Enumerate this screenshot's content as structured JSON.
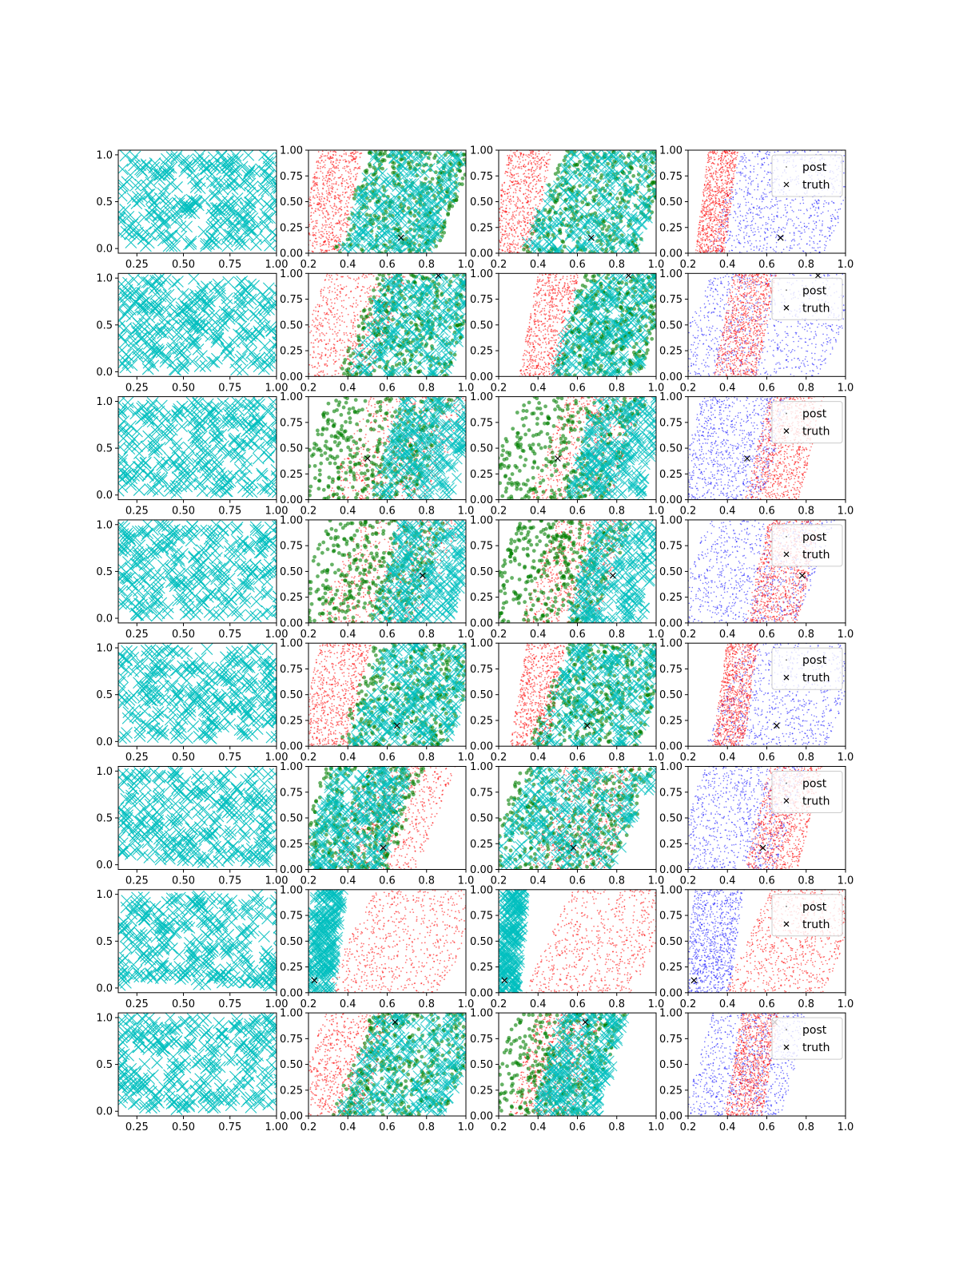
{
  "colors": {
    "uniform_points": "#00bfbf",
    "posterior_red": "#ff0000",
    "posterior_green": "#007f00",
    "posterior_blue": "#0000ff",
    "truth_marker": "#000000",
    "axes": "#000000"
  },
  "chart_data": {
    "type": "scatter",
    "layout": "8 rows x 4 columns grid of scatter panels",
    "grid": false,
    "legend": {
      "placement": "top-right",
      "panels": "fourth column of every row",
      "entries": [
        {
          "label": "post",
          "marker": "point"
        },
        {
          "label": "truth",
          "marker": "x"
        }
      ]
    },
    "columns": [
      {
        "content": "cyan x markers spread uniformly",
        "xlim": [
          0.15,
          1.0
        ],
        "ylim": [
          -0.05,
          1.05
        ],
        "xticks": [
          "0.25",
          "0.50",
          "0.75",
          "1.00"
        ],
        "yticks": [
          "0.0",
          "0.5",
          "1.0"
        ]
      },
      {
        "content": "red points, green dots and cyan x markers",
        "xlim": [
          0.2,
          1.0
        ],
        "ylim": [
          0.0,
          1.0
        ],
        "xticks": [
          "0.2",
          "0.4",
          "0.6",
          "0.8",
          "1.0"
        ],
        "yticks": [
          "0.00",
          "0.25",
          "0.50",
          "0.75",
          "1.00"
        ]
      },
      {
        "content": "red points, green dots and cyan x markers",
        "xlim": [
          0.2,
          1.0
        ],
        "ylim": [
          0.0,
          1.0
        ],
        "xticks": [
          "0.2",
          "0.4",
          "0.6",
          "0.8",
          "1.0"
        ],
        "yticks": [
          "0.00",
          "0.25",
          "0.50",
          "0.75",
          "1.00"
        ]
      },
      {
        "content": "red and blue posterior points with truth marker",
        "xlim": [
          0.2,
          1.0
        ],
        "ylim": [
          0.0,
          1.0
        ],
        "xticks": [
          "0.2",
          "0.4",
          "0.6",
          "0.8",
          "1.0"
        ],
        "yticks": [
          "0.00",
          "0.25",
          "0.50",
          "0.75",
          "1.00"
        ]
      }
    ],
    "rows": [
      {
        "truth": [
          0.67,
          0.15
        ],
        "bands": {
          "col2": {
            "red": [
              0.2,
              0.43
            ],
            "green": [
              0.42,
              0.95
            ],
            "cyan": [
              0.45,
              0.92
            ]
          },
          "col3": {
            "red": [
              0.2,
              0.42
            ],
            "green": [
              0.42,
              1.0
            ],
            "cyan": [
              0.43,
              1.0
            ]
          },
          "col4": {
            "red": [
              0.27,
              0.42
            ],
            "blue": [
              0.38,
              1.0
            ]
          }
        }
      },
      {
        "truth": [
          0.86,
          0.98
        ],
        "bands": {
          "col2": {
            "red": [
              0.2,
              0.62
            ],
            "green": [
              0.45,
              1.0
            ],
            "cyan": [
              0.5,
              1.0
            ]
          },
          "col3": {
            "red": [
              0.35,
              0.56
            ],
            "green": [
              0.55,
              1.0
            ],
            "cyan": [
              0.55,
              1.0
            ]
          },
          "col4": {
            "red": [
              0.38,
              0.6
            ],
            "blue": [
              0.2,
              1.0
            ]
          }
        }
      },
      {
        "truth": [
          0.5,
          0.4
        ],
        "bands": {
          "col2": {
            "red": [
              0.4,
              0.92
            ],
            "green": [
              0.2,
              0.85
            ],
            "cyan": [
              0.6,
              1.0
            ]
          },
          "col3": {
            "red": [
              0.45,
              0.86
            ],
            "green": [
              0.2,
              0.85
            ],
            "cyan": [
              0.62,
              1.0
            ]
          },
          "col4": {
            "red": [
              0.55,
              0.83
            ],
            "blue": [
              0.2,
              0.65
            ]
          }
        }
      },
      {
        "truth": [
          0.78,
          0.46
        ],
        "bands": {
          "col2": {
            "red": [
              0.35,
              0.88
            ],
            "green": [
              0.2,
              0.82
            ],
            "cyan": [
              0.6,
              1.0
            ]
          },
          "col3": {
            "red": [
              0.4,
              0.78
            ],
            "green": [
              0.2,
              0.78
            ],
            "cyan": [
              0.62,
              1.0
            ]
          },
          "col4": {
            "red": [
              0.55,
              0.82
            ],
            "blue": [
              0.2,
              0.85
            ]
          }
        }
      },
      {
        "truth": [
          0.65,
          0.2
        ],
        "bands": {
          "col2": {
            "red": [
              0.2,
              0.46
            ],
            "green": [
              0.44,
              1.0
            ],
            "cyan": [
              0.5,
              1.0
            ]
          },
          "col3": {
            "red": [
              0.3,
              0.5
            ],
            "green": [
              0.45,
              1.0
            ],
            "cyan": [
              0.48,
              1.0
            ]
          },
          "col4": {
            "red": [
              0.36,
              0.52
            ],
            "blue": [
              0.38,
              1.0
            ]
          }
        }
      },
      {
        "truth": [
          0.58,
          0.21
        ],
        "bands": {
          "col2": {
            "red": [
              0.4,
              0.85
            ],
            "green": [
              0.2,
              0.7
            ],
            "cyan": [
              0.25,
              0.65
            ]
          },
          "col3": {
            "red": [
              0.45,
              0.85
            ],
            "green": [
              0.2,
              0.9
            ],
            "cyan": [
              0.25,
              0.9
            ]
          },
          "col4": {
            "red": [
              0.55,
              0.82
            ],
            "blue": [
              0.2,
              0.72
            ]
          }
        }
      },
      {
        "truth": [
          0.23,
          0.12
        ],
        "bands": {
          "col2": {
            "red": [
              0.4,
              1.0
            ],
            "cyan": [
              0.2,
              0.35
            ]
          },
          "col3": {
            "red": [
              0.45,
              1.0
            ],
            "cyan": [
              0.2,
              0.32
            ]
          },
          "col4": {
            "red": [
              0.5,
              1.0
            ],
            "blue": [
              0.2,
              0.45
            ]
          }
        }
      },
      {
        "truth": [
          0.64,
          0.91
        ],
        "bands": {
          "col2": {
            "red": [
              0.2,
              0.55
            ],
            "green": [
              0.42,
              1.0
            ],
            "cyan": [
              0.45,
              1.0
            ]
          },
          "col3": {
            "red": [
              0.32,
              0.65
            ],
            "green": [
              0.2,
              0.75
            ],
            "cyan": [
              0.45,
              0.78
            ]
          },
          "col4": {
            "red": [
              0.43,
              0.62
            ],
            "blue": [
              0.25,
              0.75
            ]
          }
        }
      }
    ]
  }
}
